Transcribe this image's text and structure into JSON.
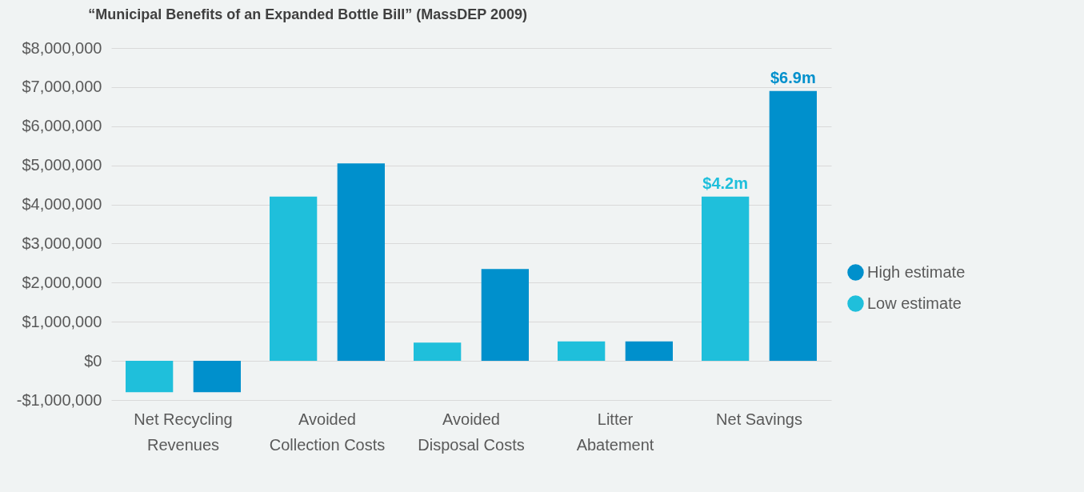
{
  "chart_data": {
    "type": "bar",
    "title": "“Municipal Benefits of an Expanded Bottle Bill” (MassDEP 2009)",
    "categories": [
      "Net Recycling Revenues",
      "Avoided Collection Costs",
      "Avoided Disposal Costs",
      "Litter Abatement",
      "Net Savings"
    ],
    "series": [
      {
        "name": "Low estimate",
        "color": "#1fbfdb",
        "values": [
          -800000,
          4200000,
          470000,
          500000,
          4200000
        ],
        "value_labels": [
          null,
          null,
          null,
          null,
          "$4.2m"
        ]
      },
      {
        "name": "High estimate",
        "color": "#0090cc",
        "values": [
          -800000,
          5050000,
          2350000,
          500000,
          6900000
        ],
        "value_labels": [
          null,
          null,
          null,
          null,
          "$6.9m"
        ]
      }
    ],
    "ylim": [
      -1000000,
      8000000
    ],
    "yticks": [
      {
        "value": -1000000,
        "label": "-$1,000,000"
      },
      {
        "value": 0,
        "label": "$0"
      },
      {
        "value": 1000000,
        "label": "$1,000,000"
      },
      {
        "value": 2000000,
        "label": "$2,000,000"
      },
      {
        "value": 3000000,
        "label": "$3,000,000"
      },
      {
        "value": 4000000,
        "label": "$4,000,000"
      },
      {
        "value": 5000000,
        "label": "$5,000,000"
      },
      {
        "value": 6000000,
        "label": "$6,000,000"
      },
      {
        "value": 7000000,
        "label": "$7,000,000"
      },
      {
        "value": 8000000,
        "label": "$8,000,000"
      }
    ],
    "grid": "y",
    "legend": "right"
  }
}
